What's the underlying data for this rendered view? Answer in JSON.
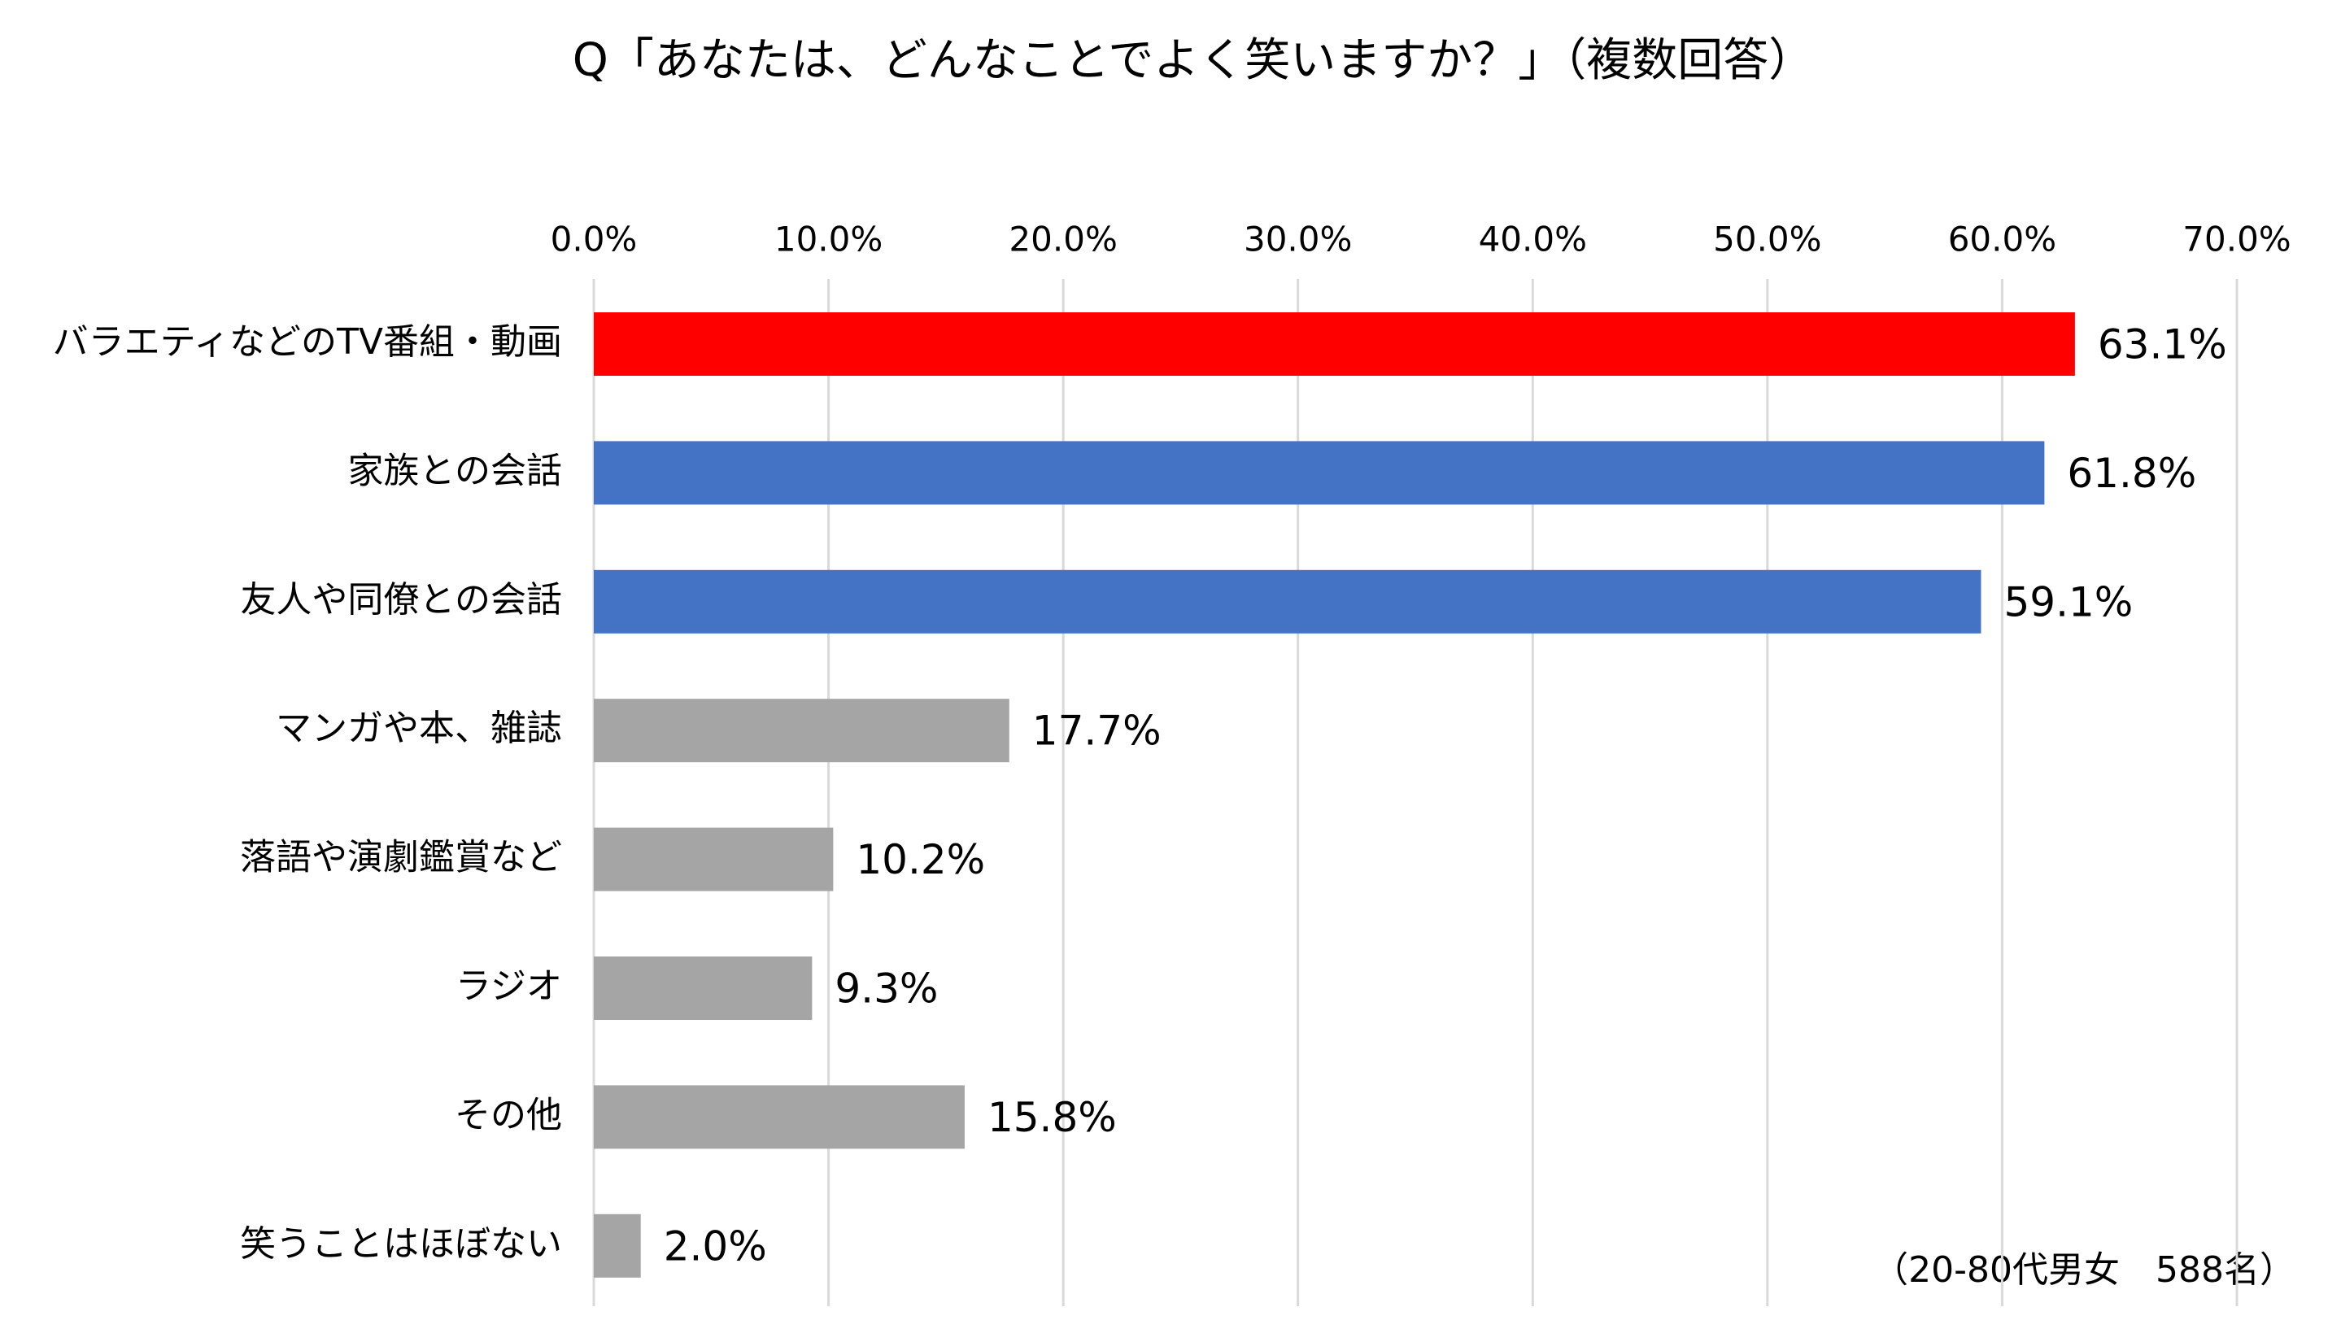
{
  "chart_data": {
    "type": "bar",
    "orientation": "horizontal",
    "title": "Q「あなたは、どんなことでよく笑いますか？」（複数回答）",
    "note": "（20-80代男女　588名）",
    "categories": [
      "バラエティなどのTV番組・動画",
      "家族との会話",
      "友人や同僚との会話",
      "マンガや本、雑誌",
      "落語や演劇鑑賞など",
      "ラジオ",
      "その他",
      "笑うことはほぼない"
    ],
    "values": [
      63.1,
      61.8,
      59.1,
      17.7,
      10.2,
      9.3,
      15.8,
      2.0
    ],
    "value_labels": [
      "63.1%",
      "61.8%",
      "59.1%",
      "17.7%",
      "10.2%",
      "9.3%",
      "15.8%",
      "2.0%"
    ],
    "colors": [
      "#ff0000",
      "#4472c4",
      "#4472c4",
      "#a5a5a5",
      "#a5a5a5",
      "#a5a5a5",
      "#a5a5a5",
      "#a5a5a5"
    ],
    "xlim": [
      0,
      70
    ],
    "xticks": [
      {
        "value": 0,
        "label": "0.0%"
      },
      {
        "value": 10,
        "label": "10.0%"
      },
      {
        "value": 20,
        "label": "20.0%"
      },
      {
        "value": 30,
        "label": "30.0%"
      },
      {
        "value": 40,
        "label": "40.0%"
      },
      {
        "value": 50,
        "label": "50.0%"
      },
      {
        "value": 60,
        "label": "60.0%"
      },
      {
        "value": 70,
        "label": "70.0%"
      }
    ],
    "grid": true
  }
}
